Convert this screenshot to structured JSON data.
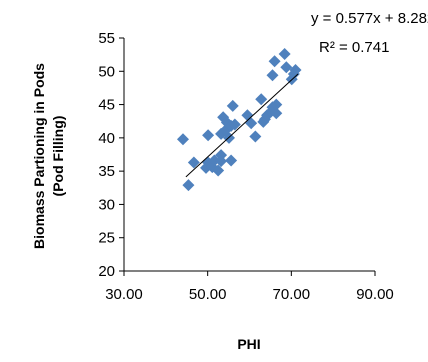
{
  "chart_data": {
    "type": "scatter",
    "xlabel": "PHI",
    "ylabel_line1": "Biomass Partioning in Pods",
    "ylabel_line2": "(Pod Filling)",
    "xlim": [
      30,
      90
    ],
    "ylim": [
      20,
      55
    ],
    "x_ticks": [
      30,
      50,
      70,
      90
    ],
    "x_tick_labels": [
      "30.00",
      "50.00",
      "70.00",
      "90.00"
    ],
    "y_ticks": [
      20,
      25,
      30,
      35,
      40,
      45,
      50,
      55
    ],
    "y_tick_labels": [
      "20",
      "25",
      "30",
      "35",
      "40",
      "45",
      "50",
      "55"
    ],
    "grid": false,
    "marker_color": "#4F81BD",
    "trendline": {
      "slope": 0.577,
      "intercept": 8.282,
      "x_range": [
        44.8,
        71.6
      ],
      "color": "#000000"
    },
    "equation_text": "y = 0.577x + 8.282",
    "r2_text": "R² = 0.741",
    "points": [
      {
        "x": 44.1,
        "y": 39.8
      },
      {
        "x": 45.4,
        "y": 32.9
      },
      {
        "x": 46.7,
        "y": 36.3
      },
      {
        "x": 49.6,
        "y": 35.5
      },
      {
        "x": 50.1,
        "y": 36.3
      },
      {
        "x": 50.1,
        "y": 40.4
      },
      {
        "x": 51.1,
        "y": 35.6
      },
      {
        "x": 51.6,
        "y": 36.6
      },
      {
        "x": 52.5,
        "y": 35.1
      },
      {
        "x": 53.2,
        "y": 37.4
      },
      {
        "x": 53.2,
        "y": 36.5
      },
      {
        "x": 53.2,
        "y": 40.6
      },
      {
        "x": 53.7,
        "y": 43.1
      },
      {
        "x": 54.2,
        "y": 41.1
      },
      {
        "x": 54.6,
        "y": 42.3
      },
      {
        "x": 55.1,
        "y": 40.0
      },
      {
        "x": 55.6,
        "y": 41.8
      },
      {
        "x": 55.6,
        "y": 36.6
      },
      {
        "x": 56.0,
        "y": 44.8
      },
      {
        "x": 56.5,
        "y": 42.0
      },
      {
        "x": 59.5,
        "y": 43.4
      },
      {
        "x": 60.4,
        "y": 42.2
      },
      {
        "x": 61.4,
        "y": 40.2
      },
      {
        "x": 62.8,
        "y": 45.8
      },
      {
        "x": 63.3,
        "y": 42.4
      },
      {
        "x": 63.7,
        "y": 42.8
      },
      {
        "x": 64.2,
        "y": 43.4
      },
      {
        "x": 65.1,
        "y": 43.9
      },
      {
        "x": 65.5,
        "y": 49.4
      },
      {
        "x": 65.5,
        "y": 44.6
      },
      {
        "x": 66.0,
        "y": 51.5
      },
      {
        "x": 66.4,
        "y": 43.7
      },
      {
        "x": 66.4,
        "y": 45.0
      },
      {
        "x": 68.4,
        "y": 52.6
      },
      {
        "x": 68.8,
        "y": 50.6
      },
      {
        "x": 70.1,
        "y": 48.8
      },
      {
        "x": 71.0,
        "y": 50.2
      },
      {
        "x": 70.6,
        "y": 49.6
      }
    ]
  }
}
